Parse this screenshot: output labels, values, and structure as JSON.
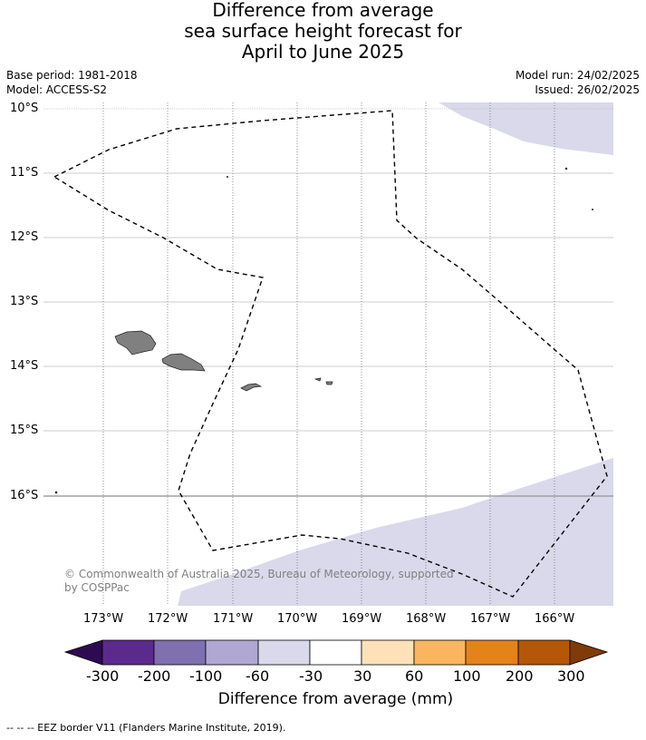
{
  "header": {
    "title_line1": "Difference from average",
    "title_line2": "sea surface height forecast for",
    "title_line3": "April to June 2025",
    "base_period": "Base period: 1981-2018",
    "model": "Model: ACCESS-S2",
    "model_run": "Model run: 24/02/2025",
    "issued": "Issued: 26/02/2025"
  },
  "map": {
    "lat_labels": [
      "10°S",
      "11°S",
      "12°S",
      "13°S",
      "14°S",
      "15°S",
      "16°S"
    ],
    "lon_labels": [
      "173°W",
      "172°W",
      "171°W",
      "170°W",
      "169°W",
      "168°W",
      "167°W",
      "166°W"
    ],
    "copyright_line1": "© Commonwealth of Australia 2025, Bureau of Meteorology, supported",
    "copyright_line2": "by COSPPac",
    "colors": {
      "anomaly_fill": "#d9d9eb",
      "land": "#808080",
      "eez_line": "#000000"
    }
  },
  "colorbar": {
    "title": "Difference from average (mm)",
    "tick_labels": [
      "-300",
      "-200",
      "-100",
      "-60",
      "-30",
      "30",
      "60",
      "100",
      "200",
      "300"
    ],
    "colors": [
      "#2d0a52",
      "#5c2a8c",
      "#8070b0",
      "#b0a8d2",
      "#d9d9eb",
      "#ffffff",
      "#fee1b8",
      "#fbb55e",
      "#e3831a",
      "#b45708",
      "#7f3b08"
    ]
  },
  "footer": {
    "legend": "--  --  -- EEZ border V11 (Flanders Marine Institute, 2019)."
  }
}
